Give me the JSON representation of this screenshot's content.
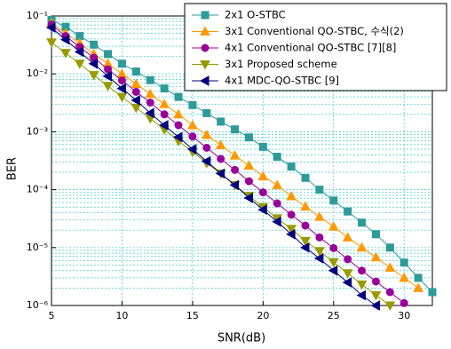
{
  "chart_data": {
    "type": "line",
    "x_label": "SNR(dB)",
    "y_label": "BER",
    "y_scale": "log",
    "grid": true,
    "minor_grid": true,
    "xlim": [
      5,
      32
    ],
    "xticks": [
      5,
      10,
      15,
      20,
      25,
      30
    ],
    "ylim": [
      1e-06,
      0.1
    ],
    "yticks": [
      {
        "value": 1e-06,
        "label": "10⁻⁶"
      },
      {
        "value": 1e-05,
        "label": "10⁻⁵"
      },
      {
        "value": 0.0001,
        "label": "10⁻⁴"
      },
      {
        "value": 0.001,
        "label": "10⁻³"
      },
      {
        "value": 0.01,
        "label": "10⁻²"
      },
      {
        "value": 0.1,
        "label": "10⁻¹"
      }
    ],
    "legend": "upper right",
    "series": [
      {
        "name": "2x1 O-STBC",
        "color": "#2e9a9a",
        "marker": "square",
        "x": [
          5,
          6,
          7,
          8,
          9,
          10,
          11,
          12,
          13,
          14,
          15,
          16,
          17,
          18,
          19,
          20,
          21,
          22,
          23,
          24,
          25,
          26,
          27,
          28,
          29,
          30,
          31,
          32
        ],
        "values": [
          0.085,
          0.065,
          0.045,
          0.032,
          0.022,
          0.015,
          0.011,
          0.0078,
          0.0056,
          0.004,
          0.0029,
          0.0021,
          0.0015,
          0.0011,
          0.0008,
          0.00055,
          0.00037,
          0.00025,
          0.00016,
          0.0001,
          6.5e-05,
          4.2e-05,
          2.7e-05,
          1.7e-05,
          1e-05,
          5.5e-06,
          3e-06,
          1.7e-06
        ]
      },
      {
        "name": "3x1 Conventional QO-STBC, 수식(2)",
        "color": "#ff9900",
        "marker": "triangle-up",
        "x": [
          5,
          6,
          7,
          8,
          9,
          10,
          11,
          12,
          13,
          14,
          15,
          16,
          17,
          18,
          19,
          20,
          21,
          22,
          23,
          24,
          25,
          26,
          27,
          28,
          29,
          30,
          31
        ],
        "values": [
          0.076,
          0.05,
          0.034,
          0.022,
          0.015,
          0.01,
          0.0067,
          0.0045,
          0.003,
          0.002,
          0.0013,
          0.00088,
          0.00059,
          0.00039,
          0.00026,
          0.00017,
          0.00012,
          7.7e-05,
          5.1e-05,
          3.4e-05,
          2.3e-05,
          1.5e-05,
          1e-05,
          6.8e-06,
          4.5e-06,
          3e-06,
          2e-06
        ]
      },
      {
        "name": "4x1 Conventional QO-STBC [7][8]",
        "color": "#990099",
        "marker": "circle",
        "x": [
          5,
          6,
          7,
          8,
          9,
          10,
          11,
          12,
          13,
          14,
          15,
          16,
          17,
          18,
          19,
          20,
          21,
          22,
          23,
          24,
          25,
          26,
          27,
          28,
          29,
          30
        ],
        "values": [
          0.071,
          0.045,
          0.029,
          0.019,
          0.012,
          0.0077,
          0.0049,
          0.0032,
          0.002,
          0.0013,
          0.00083,
          0.00053,
          0.00034,
          0.00022,
          0.00014,
          9e-05,
          5.8e-05,
          3.7e-05,
          2.4e-05,
          1.5e-05,
          9.8e-06,
          6.3e-06,
          4e-06,
          2.6e-06,
          1.7e-06,
          1.1e-06
        ]
      },
      {
        "name": "3x1  Proposed scheme",
        "color": "#999900",
        "marker": "triangle-down",
        "x": [
          5,
          6,
          7,
          8,
          9,
          10,
          11,
          12,
          13,
          14,
          15,
          16,
          17,
          18,
          19,
          20,
          21,
          22,
          23,
          24,
          25,
          26,
          27,
          28,
          29
        ],
        "values": [
          0.035,
          0.023,
          0.015,
          0.0095,
          0.0062,
          0.004,
          0.0026,
          0.0017,
          0.0011,
          0.00069,
          0.00045,
          0.00029,
          0.00019,
          0.00012,
          7.8e-05,
          5e-05,
          3.2e-05,
          2.1e-05,
          1.3e-05,
          8.7e-06,
          5.6e-06,
          3.6e-06,
          2.3e-06,
          1.5e-06,
          1e-06
        ]
      },
      {
        "name": "4x1 MDC-QO-STBC [9]",
        "color": "#000080",
        "marker": "triangle-left",
        "x": [
          5,
          6,
          7,
          8,
          9,
          10,
          11,
          12,
          13,
          14,
          15,
          16,
          17,
          18,
          19,
          20,
          21,
          22,
          23,
          24,
          25,
          26,
          27,
          28
        ],
        "values": [
          0.063,
          0.039,
          0.024,
          0.015,
          0.0091,
          0.0056,
          0.0035,
          0.0021,
          0.0013,
          0.00081,
          0.0005,
          0.00031,
          0.00019,
          0.00012,
          7.2e-05,
          4.5e-05,
          2.8e-05,
          1.7e-05,
          1e-05,
          6.5e-06,
          4e-06,
          2.5e-06,
          1.5e-06,
          1e-06
        ]
      }
    ]
  }
}
